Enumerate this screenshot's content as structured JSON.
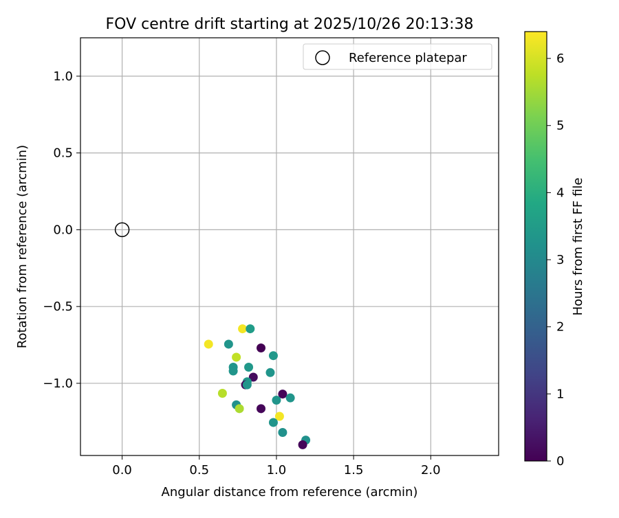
{
  "chart_data": {
    "type": "scatter",
    "title": "FOV centre drift starting at 2025/10/26 20:13:38",
    "xlabel": "Angular distance from reference (arcmin)",
    "ylabel": "Rotation from reference (arcmin)",
    "xlim": [
      -0.27,
      2.44
    ],
    "ylim": [
      -1.47,
      1.25
    ],
    "xticks": [
      0.0,
      0.5,
      1.0,
      1.5,
      2.0
    ],
    "xtick_labels": [
      "0.0",
      "0.5",
      "1.0",
      "1.5",
      "2.0"
    ],
    "yticks": [
      1.0,
      0.5,
      0.0,
      -0.5,
      -1.0
    ],
    "ytick_labels": [
      "1.0",
      "0.5",
      "0.0",
      "−0.5",
      "−1.0"
    ],
    "grid": true,
    "legend": {
      "position": "top-right",
      "entries": [
        {
          "label": "Reference platepar",
          "marker": "open-circle"
        }
      ]
    },
    "reference_point": {
      "x": 0.0,
      "y": 0.0
    },
    "colorbar": {
      "label": "Hours from first FF file",
      "colormap": "viridis",
      "range": [
        0,
        6.4
      ],
      "ticks": [
        0,
        1,
        2,
        3,
        4,
        5,
        6
      ],
      "tick_labels": [
        "0",
        "1",
        "2",
        "3",
        "4",
        "5",
        "6"
      ]
    },
    "points": [
      {
        "x": 0.78,
        "y": -0.645,
        "hours": 6.3
      },
      {
        "x": 0.83,
        "y": -0.645,
        "hours": 3.5
      },
      {
        "x": 0.56,
        "y": -0.745,
        "hours": 6.3
      },
      {
        "x": 0.69,
        "y": -0.745,
        "hours": 3.3
      },
      {
        "x": 0.9,
        "y": -0.77,
        "hours": 0.0
      },
      {
        "x": 0.74,
        "y": -0.83,
        "hours": 5.8
      },
      {
        "x": 0.98,
        "y": -0.82,
        "hours": 3.4
      },
      {
        "x": 0.72,
        "y": -0.895,
        "hours": 3.3
      },
      {
        "x": 0.72,
        "y": -0.92,
        "hours": 3.3
      },
      {
        "x": 0.82,
        "y": -0.895,
        "hours": 3.4
      },
      {
        "x": 0.96,
        "y": -0.93,
        "hours": 3.3
      },
      {
        "x": 0.85,
        "y": -0.96,
        "hours": 0.2
      },
      {
        "x": 0.81,
        "y": -0.99,
        "hours": 3.4
      },
      {
        "x": 0.8,
        "y": -1.01,
        "hours": 0.1
      },
      {
        "x": 0.81,
        "y": -1.01,
        "hours": 3.3
      },
      {
        "x": 0.65,
        "y": -1.065,
        "hours": 5.7
      },
      {
        "x": 1.04,
        "y": -1.07,
        "hours": 0.1
      },
      {
        "x": 1.09,
        "y": -1.095,
        "hours": 3.3
      },
      {
        "x": 1.0,
        "y": -1.11,
        "hours": 3.3
      },
      {
        "x": 0.74,
        "y": -1.14,
        "hours": 3.2
      },
      {
        "x": 0.76,
        "y": -1.165,
        "hours": 5.6
      },
      {
        "x": 0.9,
        "y": -1.165,
        "hours": 0.1
      },
      {
        "x": 1.02,
        "y": -1.215,
        "hours": 6.3
      },
      {
        "x": 0.98,
        "y": -1.255,
        "hours": 3.3
      },
      {
        "x": 1.04,
        "y": -1.32,
        "hours": 3.2
      },
      {
        "x": 1.19,
        "y": -1.37,
        "hours": 3.2
      },
      {
        "x": 1.17,
        "y": -1.4,
        "hours": 0.1
      }
    ]
  }
}
